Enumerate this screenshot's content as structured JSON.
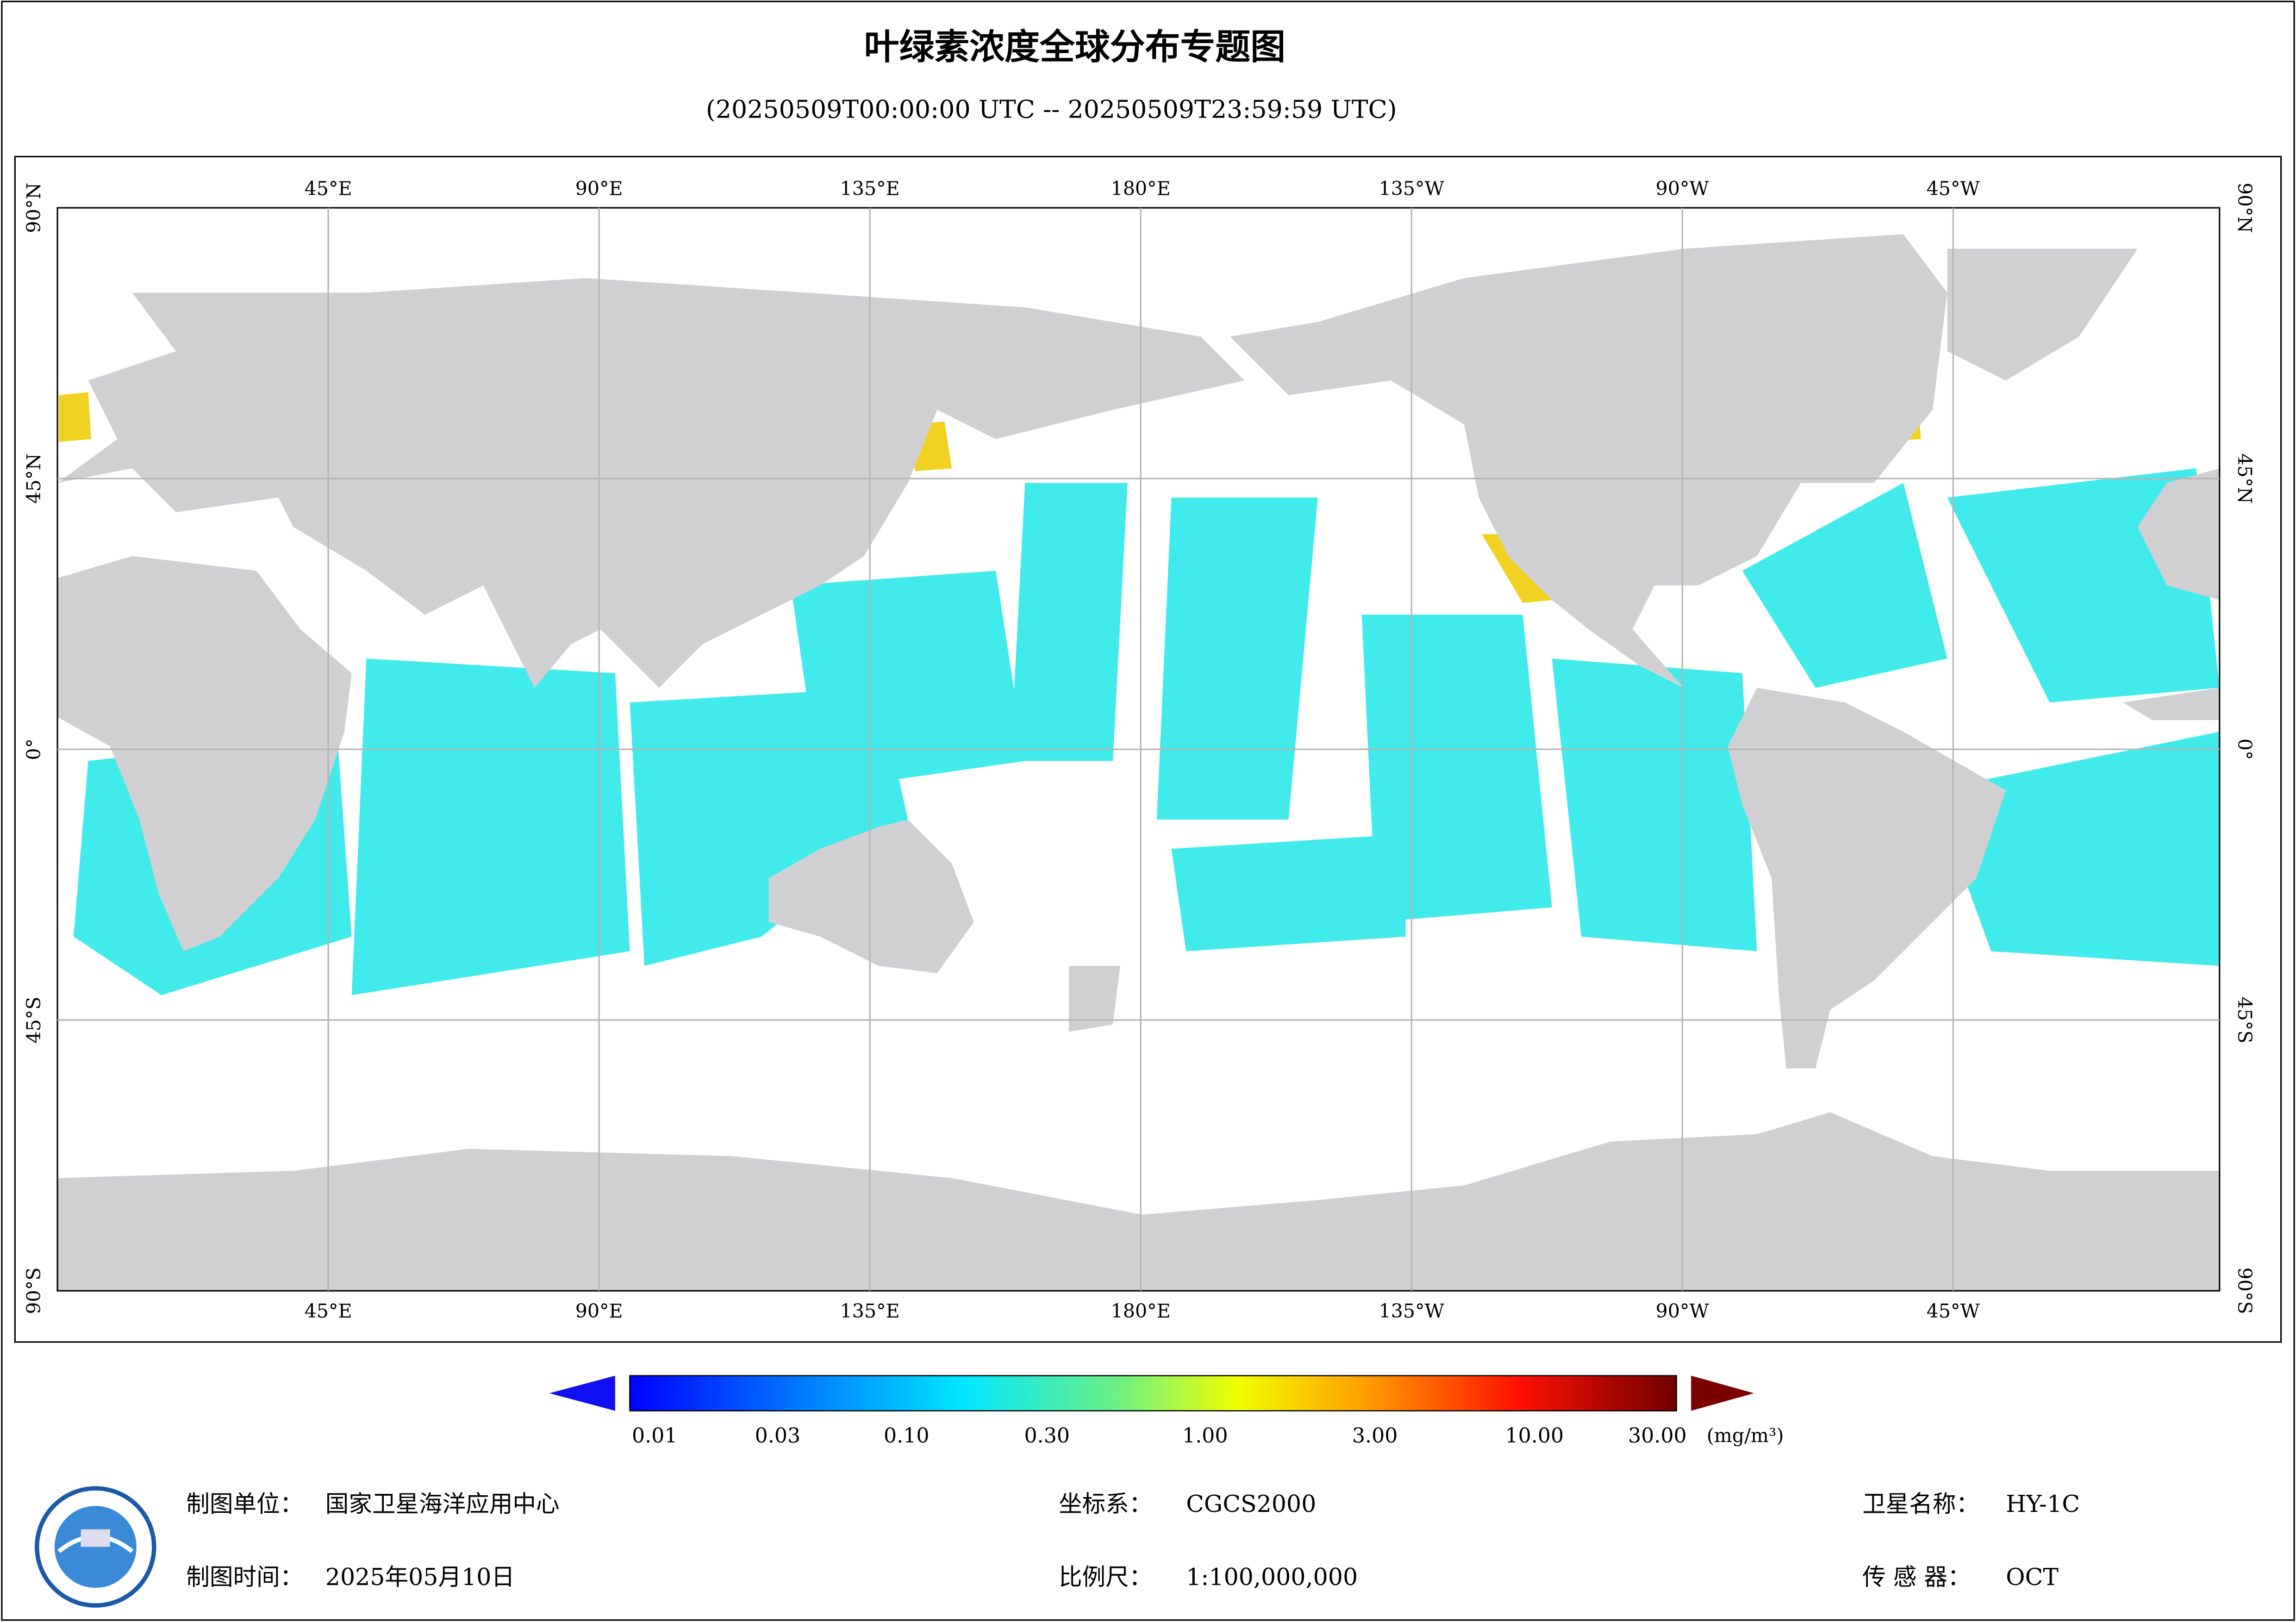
{
  "header": {
    "title": "叶绿素浓度全球分布专题图",
    "subtitle": "(20250509T00:00:00 UTC -- 20250509T23:59:59 UTC)"
  },
  "map": {
    "top_labels": [
      "45°E",
      "90°E",
      "135°E",
      "180°E",
      "135°W",
      "90°W",
      "45°W"
    ],
    "bottom_labels": [
      "45°E",
      "90°E",
      "135°E",
      "180°E",
      "135°W",
      "90°W",
      "45°W"
    ],
    "left_labels": [
      "90°N",
      "45°N",
      "0°",
      "45°S",
      "90°S"
    ],
    "right_labels": [
      "90°N",
      "45°N",
      "0°",
      "45°S",
      "90°S"
    ]
  },
  "legend": {
    "ticks": [
      "0.01",
      "0.03",
      "0.10",
      "0.30",
      "1.00",
      "3.00",
      "10.00",
      "30.00"
    ],
    "unit": "(mg/m³)"
  },
  "footer": {
    "unit": {
      "label": "制图单位：",
      "value": "国家卫星海洋应用中心"
    },
    "date": {
      "label": "制图时间：",
      "value": "2025年05月10日"
    },
    "crs": {
      "label": "坐标系：",
      "value": "CGCS2000"
    },
    "scale": {
      "label": "比例尺：",
      "value": "1:100,000,000"
    },
    "satellite": {
      "label": "卫星名称：",
      "value": "HY-1C"
    },
    "sensor": {
      "label": "传 感 器：",
      "value": "OCT"
    }
  }
}
